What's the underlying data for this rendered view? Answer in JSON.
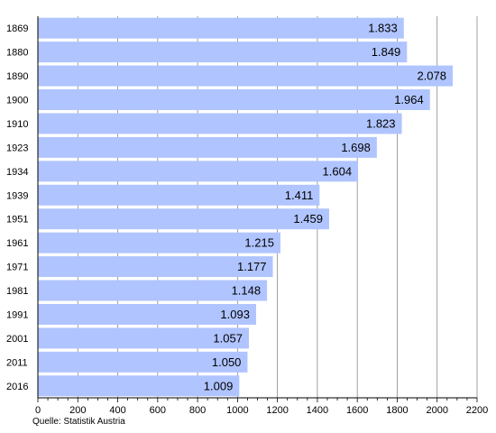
{
  "chart_data": {
    "type": "bar",
    "orientation": "horizontal",
    "categories": [
      "1869",
      "1880",
      "1890",
      "1900",
      "1910",
      "1923",
      "1934",
      "1939",
      "1951",
      "1961",
      "1971",
      "1981",
      "1991",
      "2001",
      "2011",
      "2016"
    ],
    "values": [
      1833,
      1849,
      2078,
      1964,
      1823,
      1698,
      1604,
      1411,
      1459,
      1215,
      1177,
      1148,
      1093,
      1057,
      1050,
      1009
    ],
    "value_labels": [
      "1.833",
      "1.849",
      "2.078",
      "1.964",
      "1.823",
      "1.698",
      "1.604",
      "1.411",
      "1.459",
      "1.215",
      "1.177",
      "1.148",
      "1.093",
      "1.057",
      "1.050",
      "1.009"
    ],
    "xlim": [
      0,
      2200
    ],
    "xticks": [
      0,
      200,
      400,
      600,
      800,
      1000,
      1200,
      1400,
      1600,
      1800,
      2000,
      2200
    ],
    "minor_tick_step": 50,
    "grid": "vertical",
    "title": "",
    "xlabel": "",
    "ylabel": "",
    "source": "Quelle: Statistik Austria"
  },
  "colors": {
    "bar": "#b0c4ff",
    "grid": "#888888",
    "axis": "#000000",
    "background": "#ffffff"
  }
}
